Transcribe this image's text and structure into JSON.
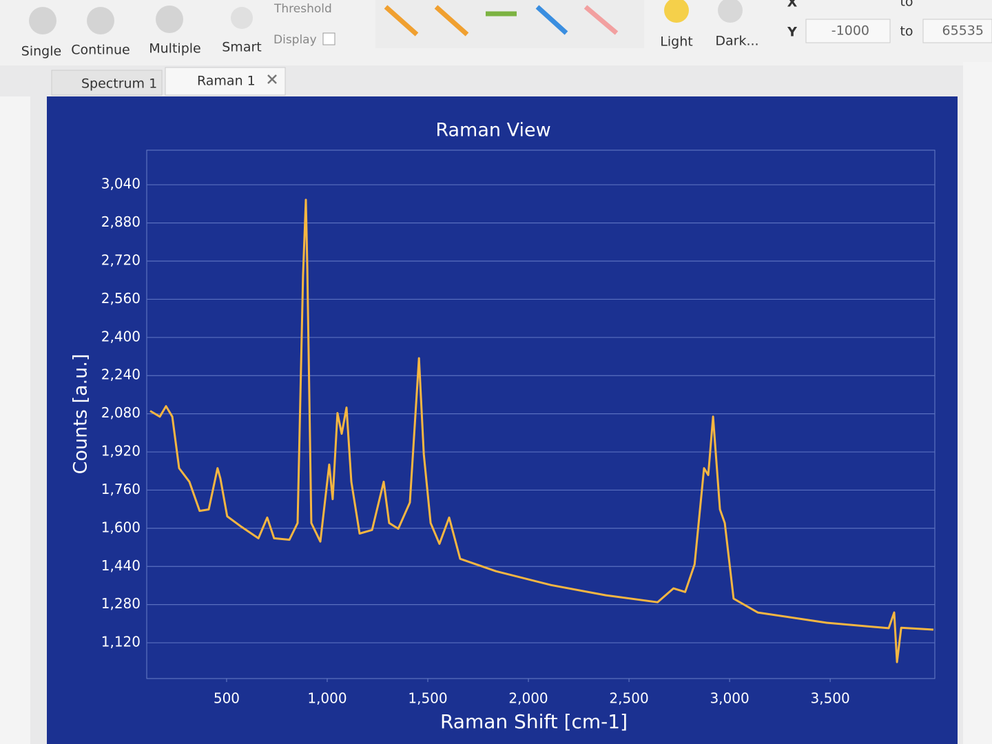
{
  "toolbar": {
    "buttons": [
      "Single",
      "Continue",
      "Multiple",
      "Smart"
    ],
    "threshold": "Threshold",
    "display": "Display",
    "light": "Light",
    "dark": "Dark...",
    "x_label": "X",
    "y_label": "Y",
    "y_from": "-1000",
    "to_x": "to",
    "to_y": "to",
    "y_to": "65535"
  },
  "tabs": [
    "Spectrum 1",
    "Raman 1"
  ],
  "chart_data": {
    "type": "line",
    "title": "Raman View",
    "x_label": "Raman Shift [cm-1]",
    "y_label": "Counts [a.u.]",
    "xlim": [
      103,
      4020
    ],
    "ylim": [
      970,
      3185
    ],
    "xticks": [
      500,
      {
        "value": 1000,
        "label": "1,000"
      },
      {
        "value": 1500,
        "label": "1,500"
      },
      {
        "value": 2000,
        "label": "2,000"
      },
      {
        "value": 2500,
        "label": "2,500"
      },
      {
        "value": 3000,
        "label": "3,000"
      },
      {
        "value": 3500,
        "label": "3,500"
      }
    ],
    "yticks": [
      {
        "value": 1120,
        "label": "1,120"
      },
      {
        "value": 1280,
        "label": "1,280"
      },
      {
        "value": 1440,
        "label": "1,440"
      },
      {
        "value": 1600,
        "label": "1,600"
      },
      {
        "value": 1760,
        "label": "1,760"
      },
      {
        "value": 1920,
        "label": "1,920"
      },
      {
        "value": 2080,
        "label": "2,080"
      },
      {
        "value": 2240,
        "label": "2,240"
      },
      {
        "value": 2400,
        "label": "2,400"
      },
      {
        "value": 2560,
        "label": "2,560"
      },
      {
        "value": 2720,
        "label": "2,720"
      },
      {
        "value": 2880,
        "label": "2,880"
      },
      {
        "value": 3040,
        "label": "3,040"
      }
    ],
    "grid": true,
    "x": [
      120,
      168,
      199,
      230,
      264,
      315,
      366,
      411,
      455,
      469,
      503,
      572,
      658,
      702,
      736,
      812,
      853,
      880,
      894,
      901,
      921,
      966,
      1010,
      1027,
      1051,
      1072,
      1096,
      1120,
      1161,
      1223,
      1281,
      1308,
      1353,
      1411,
      1456,
      1480,
      1514,
      1558,
      1606,
      1661,
      1839,
      2113,
      2385,
      2642,
      2721,
      2779,
      2826,
      2873,
      2894,
      2918,
      2952,
      2976,
      3020,
      3140,
      3482,
      3791,
      3818,
      3832,
      3853,
      4013
    ],
    "series": [
      {
        "name": "Raman 1",
        "color": "#f5b642",
        "values": [
          2092,
          2068,
          2112,
          2068,
          1852,
          1795,
          1673,
          1679,
          1852,
          1809,
          1650,
          1607,
          1558,
          1645,
          1558,
          1552,
          1622,
          2660,
          2977,
          2689,
          1622,
          1544,
          1867,
          1722,
          2083,
          1996,
          2106,
          1795,
          1578,
          1593,
          1795,
          1622,
          1598,
          1708,
          2313,
          1910,
          1622,
          1535,
          1645,
          1472,
          1420,
          1362,
          1319,
          1290,
          1348,
          1333,
          1449,
          1852,
          1823,
          2068,
          1679,
          1622,
          1305,
          1247,
          1204,
          1181,
          1247,
          1039,
          1183,
          1175
        ]
      }
    ]
  }
}
